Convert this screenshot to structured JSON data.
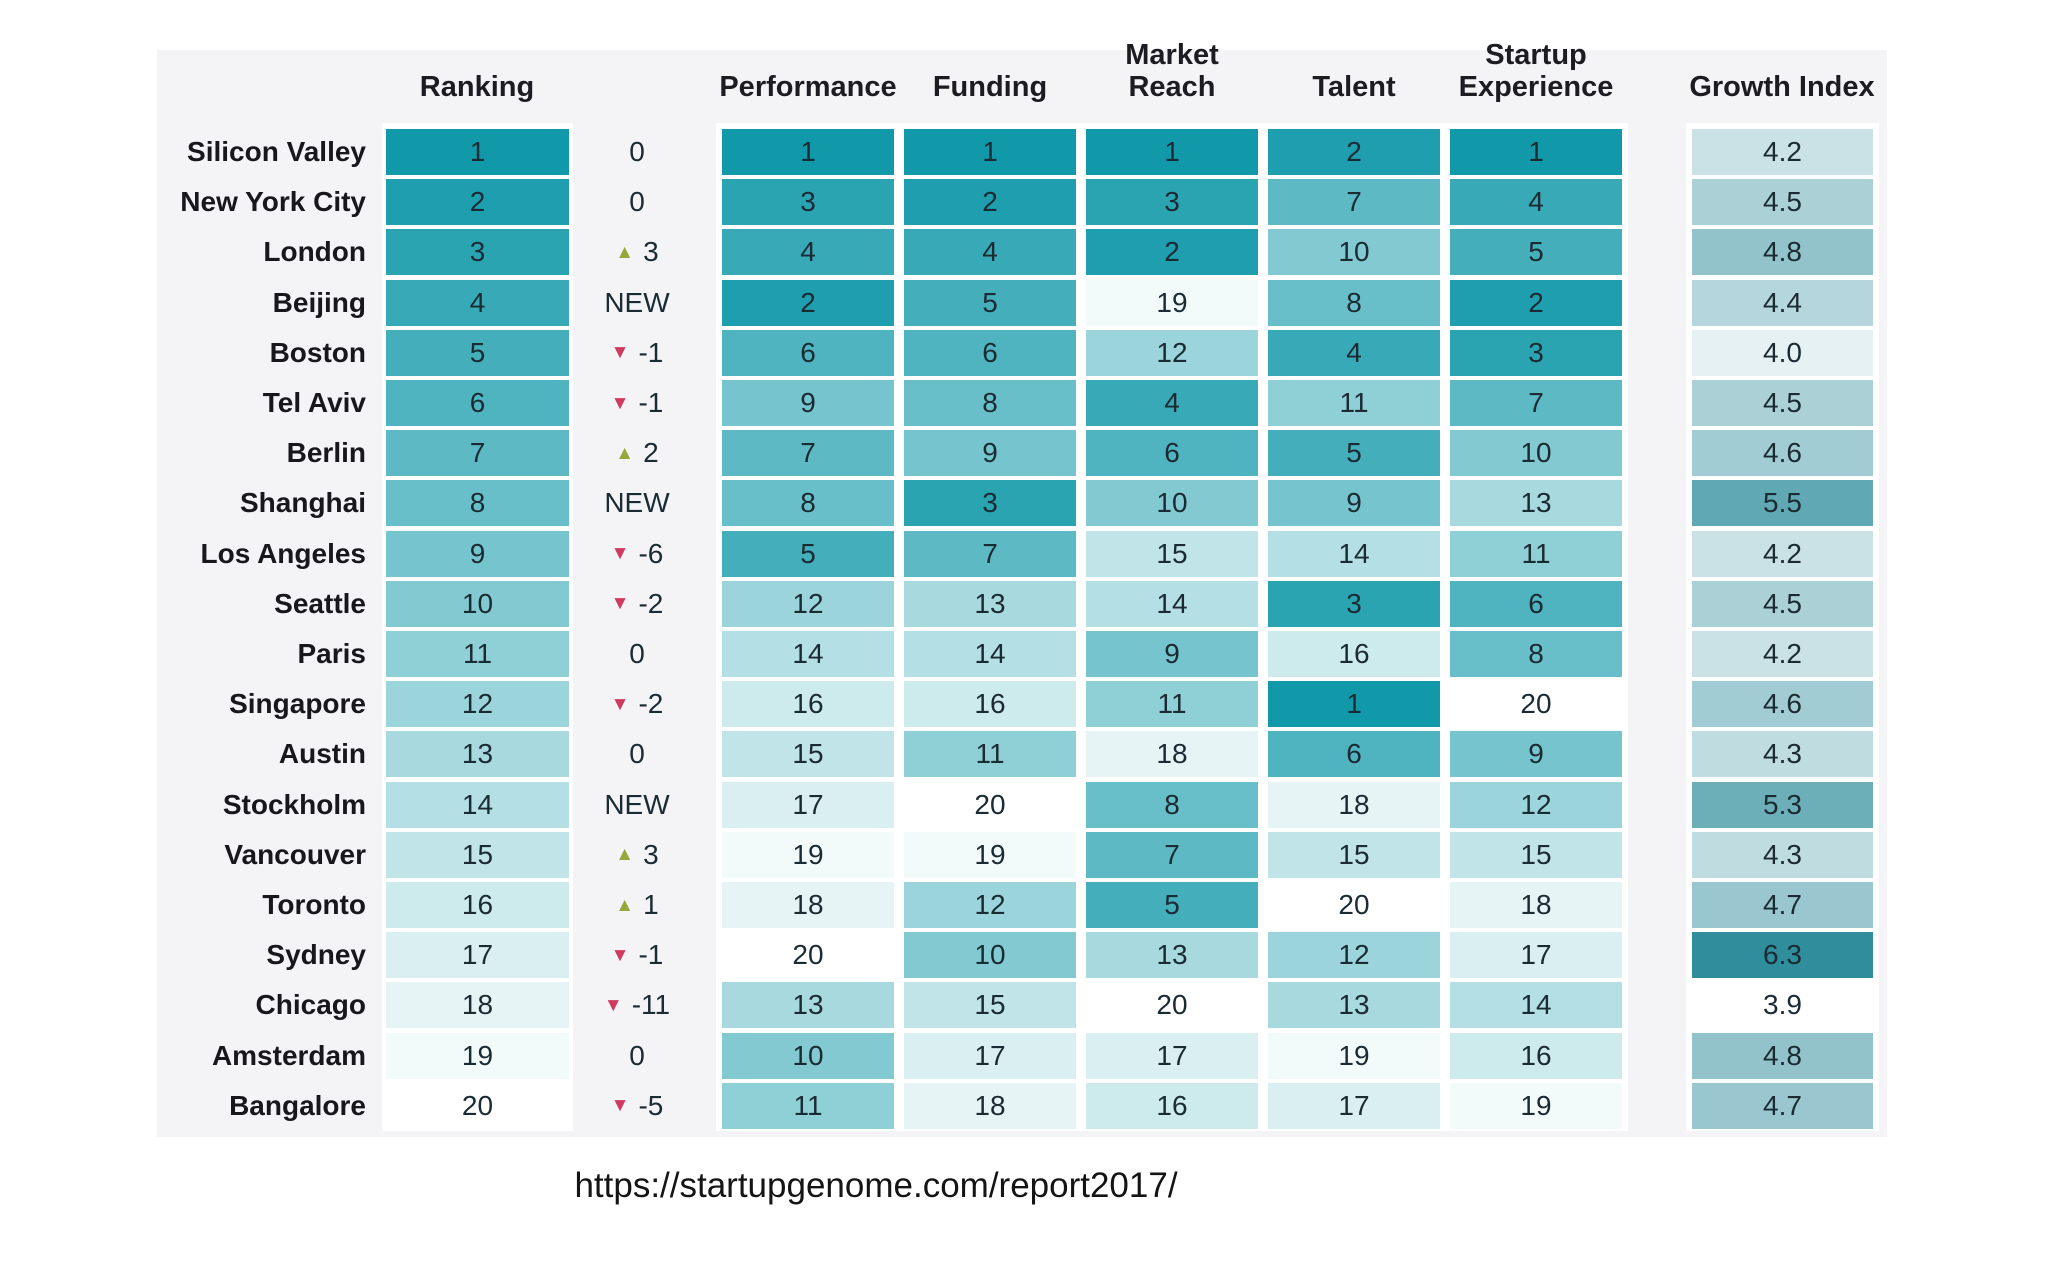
{
  "chart_data": {
    "type": "heatmap",
    "headers": {
      "ranking": "Ranking",
      "performance": "Performance",
      "funding": "Funding",
      "market_reach": "Market Reach",
      "talent": "Talent",
      "startup_experience": "Startup Experience",
      "growth_index": "Growth Index"
    },
    "rows": [
      {
        "city": "Silicon Valley",
        "ranking": 1,
        "change": "0",
        "change_dir": "none",
        "performance": 1,
        "funding": 1,
        "market_reach": 1,
        "talent": 2,
        "startup_experience": 1,
        "growth_index": "4.2"
      },
      {
        "city": "New York City",
        "ranking": 2,
        "change": "0",
        "change_dir": "none",
        "performance": 3,
        "funding": 2,
        "market_reach": 3,
        "talent": 7,
        "startup_experience": 4,
        "growth_index": "4.5"
      },
      {
        "city": "London",
        "ranking": 3,
        "change": "3",
        "change_dir": "up",
        "performance": 4,
        "funding": 4,
        "market_reach": 2,
        "talent": 10,
        "startup_experience": 5,
        "growth_index": "4.8"
      },
      {
        "city": "Beijing",
        "ranking": 4,
        "change": "NEW",
        "change_dir": "none",
        "performance": 2,
        "funding": 5,
        "market_reach": 19,
        "talent": 8,
        "startup_experience": 2,
        "growth_index": "4.4"
      },
      {
        "city": "Boston",
        "ranking": 5,
        "change": "-1",
        "change_dir": "down",
        "performance": 6,
        "funding": 6,
        "market_reach": 12,
        "talent": 4,
        "startup_experience": 3,
        "growth_index": "4.0"
      },
      {
        "city": "Tel Aviv",
        "ranking": 6,
        "change": "-1",
        "change_dir": "down",
        "performance": 9,
        "funding": 8,
        "market_reach": 4,
        "talent": 11,
        "startup_experience": 7,
        "growth_index": "4.5"
      },
      {
        "city": "Berlin",
        "ranking": 7,
        "change": "2",
        "change_dir": "up",
        "performance": 7,
        "funding": 9,
        "market_reach": 6,
        "talent": 5,
        "startup_experience": 10,
        "growth_index": "4.6"
      },
      {
        "city": "Shanghai",
        "ranking": 8,
        "change": "NEW",
        "change_dir": "none",
        "performance": 8,
        "funding": 3,
        "market_reach": 10,
        "talent": 9,
        "startup_experience": 13,
        "growth_index": "5.5"
      },
      {
        "city": "Los Angeles",
        "ranking": 9,
        "change": "-6",
        "change_dir": "down",
        "performance": 5,
        "funding": 7,
        "market_reach": 15,
        "talent": 14,
        "startup_experience": 11,
        "growth_index": "4.2"
      },
      {
        "city": "Seattle",
        "ranking": 10,
        "change": "-2",
        "change_dir": "down",
        "performance": 12,
        "funding": 13,
        "market_reach": 14,
        "talent": 3,
        "startup_experience": 6,
        "growth_index": "4.5"
      },
      {
        "city": "Paris",
        "ranking": 11,
        "change": "0",
        "change_dir": "none",
        "performance": 14,
        "funding": 14,
        "market_reach": 9,
        "talent": 16,
        "startup_experience": 8,
        "growth_index": "4.2"
      },
      {
        "city": "Singapore",
        "ranking": 12,
        "change": "-2",
        "change_dir": "down",
        "performance": 16,
        "funding": 16,
        "market_reach": 11,
        "talent": 1,
        "startup_experience": 20,
        "growth_index": "4.6"
      },
      {
        "city": "Austin",
        "ranking": 13,
        "change": "0",
        "change_dir": "none",
        "performance": 15,
        "funding": 11,
        "market_reach": 18,
        "talent": 6,
        "startup_experience": 9,
        "growth_index": "4.3"
      },
      {
        "city": "Stockholm",
        "ranking": 14,
        "change": "NEW",
        "change_dir": "none",
        "performance": 17,
        "funding": 20,
        "market_reach": 8,
        "talent": 18,
        "startup_experience": 12,
        "growth_index": "5.3"
      },
      {
        "city": "Vancouver",
        "ranking": 15,
        "change": "3",
        "change_dir": "up",
        "performance": 19,
        "funding": 19,
        "market_reach": 7,
        "talent": 15,
        "startup_experience": 15,
        "growth_index": "4.3"
      },
      {
        "city": "Toronto",
        "ranking": 16,
        "change": "1",
        "change_dir": "up",
        "performance": 18,
        "funding": 12,
        "market_reach": 5,
        "talent": 20,
        "startup_experience": 18,
        "growth_index": "4.7"
      },
      {
        "city": "Sydney",
        "ranking": 17,
        "change": "-1",
        "change_dir": "down",
        "performance": 20,
        "funding": 10,
        "market_reach": 13,
        "talent": 12,
        "startup_experience": 17,
        "growth_index": "6.3"
      },
      {
        "city": "Chicago",
        "ranking": 18,
        "change": "-11",
        "change_dir": "down",
        "performance": 13,
        "funding": 15,
        "market_reach": 20,
        "talent": 13,
        "startup_experience": 14,
        "growth_index": "3.9"
      },
      {
        "city": "Amsterdam",
        "ranking": 19,
        "change": "0",
        "change_dir": "none",
        "performance": 10,
        "funding": 17,
        "market_reach": 17,
        "talent": 19,
        "startup_experience": 16,
        "growth_index": "4.8"
      },
      {
        "city": "Bangalore",
        "ranking": 20,
        "change": "-5",
        "change_dir": "down",
        "performance": 11,
        "funding": 18,
        "market_reach": 16,
        "talent": 17,
        "startup_experience": 19,
        "growth_index": "4.7"
      }
    ],
    "color_scale": {
      "rank_dark": "#1299a9",
      "growth_dark": "#2f8d9c",
      "light": "#ffffff",
      "rank_range": [
        1,
        20
      ],
      "growth_range": [
        3.9,
        6.3
      ]
    }
  },
  "icons": {
    "up_arrow": "▲",
    "down_arrow": "▼"
  },
  "colors": {
    "panel_bg": "#f4f4f7",
    "up_arrow": "#97a83b",
    "down_arrow": "#cf3a5e",
    "cell_text": "#1b2b33"
  },
  "footer": {
    "url": "https://startupgenome.com/report2017/"
  }
}
